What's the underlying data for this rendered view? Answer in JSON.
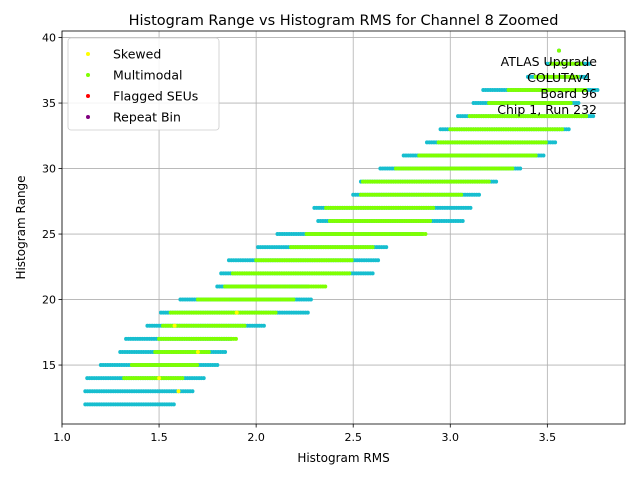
{
  "chart_data": {
    "type": "scatter",
    "title": "Histogram Range vs Histogram RMS for Channel 8 Zoomed",
    "xlabel": "Histogram RMS",
    "ylabel": "Histogram Range",
    "xlim": [
      1.0,
      3.9
    ],
    "ylim": [
      10.5,
      40.5
    ],
    "xticks": [
      1.0,
      1.5,
      2.0,
      2.5,
      3.0,
      3.5
    ],
    "xtick_labels": [
      "1.0",
      "1.5",
      "2.0",
      "2.5",
      "3.0",
      "3.5"
    ],
    "yticks": [
      15,
      20,
      25,
      30,
      35,
      40
    ],
    "ytick_labels": [
      "15",
      "20",
      "25",
      "30",
      "35",
      "40"
    ],
    "grid": true,
    "legend_position": "top-left",
    "legend": [
      {
        "label": "Skewed",
        "color": "#ffff00"
      },
      {
        "label": "Multimodal",
        "color": "#7fff00"
      },
      {
        "label": "Flagged SEUs",
        "color": "#ff0000"
      },
      {
        "label": "Repeat Bin",
        "color": "#800080"
      }
    ],
    "annotation": [
      "ATLAS Upgrade",
      "COLUTAv4",
      "Board 96",
      "Chip 1, Run 232"
    ],
    "series": [
      {
        "name": "All",
        "color": "#17becf",
        "ranges": [
          {
            "y": 12,
            "x": [
              1.12,
              1.58
            ]
          },
          {
            "y": 13,
            "x": [
              1.12,
              1.68
            ]
          },
          {
            "y": 14,
            "x": [
              1.13,
              1.74
            ]
          },
          {
            "y": 15,
            "x": [
              1.2,
              1.8
            ]
          },
          {
            "y": 16,
            "x": [
              1.3,
              1.84
            ]
          },
          {
            "y": 17,
            "x": [
              1.33,
              1.88
            ]
          },
          {
            "y": 18,
            "x": [
              1.44,
              2.05
            ]
          },
          {
            "y": 19,
            "x": [
              1.51,
              2.27
            ]
          },
          {
            "y": 20,
            "x": [
              1.61,
              2.29
            ]
          },
          {
            "y": 21,
            "x": [
              1.8,
              2.27
            ]
          },
          {
            "y": 22,
            "x": [
              1.82,
              2.6
            ]
          },
          {
            "y": 23,
            "x": [
              1.86,
              2.63
            ]
          },
          {
            "y": 24,
            "x": [
              2.01,
              2.67
            ]
          },
          {
            "y": 25,
            "x": [
              2.11,
              2.86
            ]
          },
          {
            "y": 26,
            "x": [
              2.32,
              3.07
            ]
          },
          {
            "y": 27,
            "x": [
              2.3,
              3.11
            ]
          },
          {
            "y": 28,
            "x": [
              2.5,
              3.15
            ]
          },
          {
            "y": 29,
            "x": [
              2.54,
              3.24
            ]
          },
          {
            "y": 30,
            "x": [
              2.64,
              3.37
            ]
          },
          {
            "y": 31,
            "x": [
              2.76,
              3.49
            ]
          },
          {
            "y": 32,
            "x": [
              2.88,
              3.54
            ]
          },
          {
            "y": 33,
            "x": [
              2.95,
              3.61
            ]
          },
          {
            "y": 34,
            "x": [
              3.04,
              3.74
            ]
          },
          {
            "y": 35,
            "x": [
              3.12,
              3.66
            ]
          },
          {
            "y": 36,
            "x": [
              3.17,
              3.76
            ]
          },
          {
            "y": 37,
            "x": [
              3.4,
              3.7
            ]
          },
          {
            "y": 38,
            "x": [
              3.5,
              3.72
            ]
          },
          {
            "y": 39,
            "x": [
              3.56,
              3.56
            ]
          }
        ]
      },
      {
        "name": "Multimodal",
        "color": "#7fff00",
        "ranges": [
          {
            "y": 14,
            "x": [
              1.32,
              1.62
            ]
          },
          {
            "y": 15,
            "x": [
              1.36,
              1.7
            ]
          },
          {
            "y": 16,
            "x": [
              1.48,
              1.76
            ]
          },
          {
            "y": 17,
            "x": [
              1.5,
              1.9
            ]
          },
          {
            "y": 18,
            "x": [
              1.52,
              1.95
            ]
          },
          {
            "y": 19,
            "x": [
              1.56,
              2.1
            ]
          },
          {
            "y": 20,
            "x": [
              1.7,
              2.2
            ]
          },
          {
            "y": 21,
            "x": [
              1.84,
              2.36
            ]
          },
          {
            "y": 22,
            "x": [
              1.88,
              2.48
            ]
          },
          {
            "y": 23,
            "x": [
              2.0,
              2.5
            ]
          },
          {
            "y": 24,
            "x": [
              2.18,
              2.6
            ]
          },
          {
            "y": 25,
            "x": [
              2.26,
              2.88
            ]
          },
          {
            "y": 26,
            "x": [
              2.38,
              2.9
            ]
          },
          {
            "y": 27,
            "x": [
              2.36,
              2.92
            ]
          },
          {
            "y": 28,
            "x": [
              2.54,
              3.06
            ]
          },
          {
            "y": 29,
            "x": [
              2.55,
              3.2
            ]
          },
          {
            "y": 30,
            "x": [
              2.72,
              3.32
            ]
          },
          {
            "y": 31,
            "x": [
              2.84,
              3.45
            ]
          },
          {
            "y": 32,
            "x": [
              2.94,
              3.5
            ]
          },
          {
            "y": 33,
            "x": [
              3.0,
              3.58
            ]
          },
          {
            "y": 34,
            "x": [
              3.1,
              3.7
            ]
          },
          {
            "y": 35,
            "x": [
              3.2,
              3.62
            ]
          },
          {
            "y": 36,
            "x": [
              3.3,
              3.7
            ]
          },
          {
            "y": 37,
            "x": [
              3.44,
              3.66
            ]
          },
          {
            "y": 38,
            "x": [
              3.52,
              3.68
            ]
          },
          {
            "y": 39,
            "x": [
              3.56,
              3.56
            ]
          }
        ]
      },
      {
        "name": "Skewed",
        "color": "#ffff00",
        "points": [
          [
            1.5,
            14
          ],
          [
            1.6,
            13
          ],
          [
            1.7,
            16
          ],
          [
            1.58,
            18
          ],
          [
            1.9,
            19
          ]
        ]
      }
    ]
  }
}
